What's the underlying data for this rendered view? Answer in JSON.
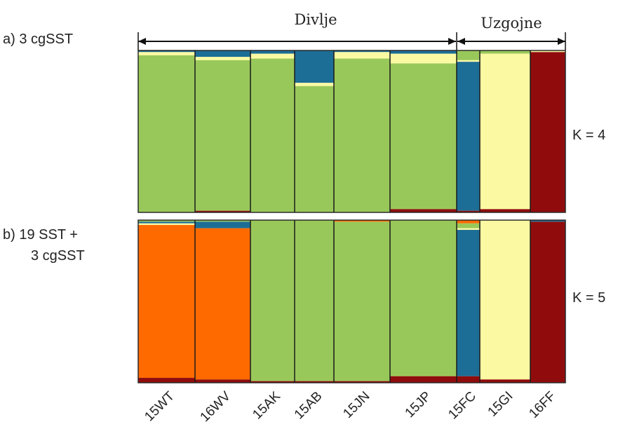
{
  "chart_data": [
    {
      "type": "bar",
      "panel_label": "a) 3 cgSST",
      "k_label": "K = 4",
      "populations": [
        "15WT",
        "16WV",
        "15AK",
        "15AB",
        "15JN",
        "15JP",
        "15FC",
        "15GI",
        "16FF"
      ],
      "population_groups": [
        {
          "label": "Divlje",
          "from": "15WT",
          "to": "15JP"
        },
        {
          "label": "Uzgojne",
          "from": "15FC",
          "to": "16FF"
        }
      ],
      "stacked": true,
      "ylim": [
        0,
        1
      ],
      "series": [
        {
          "color": "#99c85a",
          "values": [
            0.97,
            0.93,
            0.95,
            0.78,
            0.95,
            0.9,
            0.06,
            0.02,
            0.0
          ]
        },
        {
          "color": "#1d6e96",
          "values": [
            0.01,
            0.04,
            0.02,
            0.2,
            0.01,
            0.02,
            0.92,
            0.0,
            0.0
          ]
        },
        {
          "color": "#fbfaa2",
          "values": [
            0.02,
            0.02,
            0.03,
            0.02,
            0.04,
            0.06,
            0.01,
            0.96,
            0.01
          ]
        },
        {
          "color": "#900c0c",
          "values": [
            0.0,
            0.01,
            0.0,
            0.0,
            0.0,
            0.02,
            0.01,
            0.02,
            0.99
          ]
        }
      ]
    },
    {
      "type": "bar",
      "panel_label_line1": "b) 19 SST +",
      "panel_label_line2": "3 cgSST",
      "k_label": "K = 5",
      "populations": [
        "15WT",
        "16WV",
        "15AK",
        "15AB",
        "15JN",
        "15JP",
        "15FC",
        "15GI",
        "16FF"
      ],
      "stacked": true,
      "ylim": [
        0,
        1
      ],
      "series": [
        {
          "color": "#ff6a00",
          "values": [
            0.94,
            0.93,
            0.0,
            0.0,
            0.01,
            0.0,
            0.02,
            0.0,
            0.0
          ]
        },
        {
          "color": "#99c85a",
          "values": [
            0.01,
            0.01,
            0.99,
            0.99,
            0.98,
            0.96,
            0.03,
            0.0,
            0.0
          ]
        },
        {
          "color": "#1d6e96",
          "values": [
            0.01,
            0.04,
            0.0,
            0.0,
            0.0,
            0.0,
            0.9,
            0.0,
            0.01
          ]
        },
        {
          "color": "#fbfaa2",
          "values": [
            0.01,
            0.0,
            0.0,
            0.0,
            0.0,
            0.0,
            0.01,
            0.98,
            0.0
          ]
        },
        {
          "color": "#900c0c",
          "values": [
            0.03,
            0.02,
            0.01,
            0.01,
            0.01,
            0.04,
            0.04,
            0.02,
            0.99
          ]
        }
      ]
    }
  ]
}
